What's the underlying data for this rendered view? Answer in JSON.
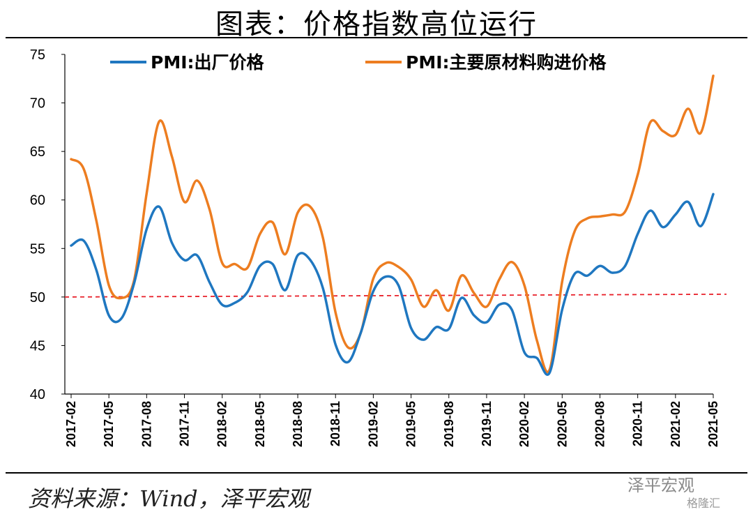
{
  "title": "图表：价格指数高位运行",
  "source": "资料来源：Wind，泽平宏观",
  "watermark": "泽平宏观",
  "watermark2": "格隆汇",
  "chart_data": {
    "type": "line",
    "ylim": [
      40,
      75
    ],
    "yticks": [
      40,
      45,
      50,
      55,
      60,
      65,
      70,
      75
    ],
    "xtick_labels": [
      "2017-02",
      "2017-05",
      "2017-08",
      "2017-11",
      "2018-02",
      "2018-05",
      "2018-08",
      "2018-11",
      "2019-02",
      "2019-05",
      "2019-08",
      "2019-11",
      "2020-02",
      "2020-05",
      "2020-08",
      "2020-11",
      "2021-02",
      "2021-05"
    ],
    "x": [
      "2017-02",
      "2017-03",
      "2017-04",
      "2017-05",
      "2017-06",
      "2017-07",
      "2017-08",
      "2017-09",
      "2017-10",
      "2017-11",
      "2017-12",
      "2018-01",
      "2018-02",
      "2018-03",
      "2018-04",
      "2018-05",
      "2018-06",
      "2018-07",
      "2018-08",
      "2018-09",
      "2018-10",
      "2018-11",
      "2018-12",
      "2019-01",
      "2019-02",
      "2019-03",
      "2019-04",
      "2019-05",
      "2019-06",
      "2019-07",
      "2019-08",
      "2019-09",
      "2019-10",
      "2019-11",
      "2019-12",
      "2020-01",
      "2020-02",
      "2020-03",
      "2020-04",
      "2020-05",
      "2020-06",
      "2020-07",
      "2020-08",
      "2020-09",
      "2020-10",
      "2020-11",
      "2020-12",
      "2021-01",
      "2021-02",
      "2021-03",
      "2021-04",
      "2021-05"
    ],
    "series": [
      {
        "name": "PMI:出厂价格",
        "color": "#1f77c0",
        "values": [
          55.3,
          55.8,
          52.8,
          48.1,
          47.8,
          51.4,
          57.0,
          59.3,
          55.6,
          53.8,
          54.3,
          51.5,
          49.2,
          49.4,
          50.5,
          53.2,
          53.4,
          50.7,
          54.3,
          53.8,
          50.9,
          45.1,
          43.3,
          46.3,
          50.6,
          52.1,
          51.2,
          46.8,
          45.6,
          46.9,
          46.7,
          49.9,
          48.1,
          47.4,
          49.2,
          48.7,
          44.3,
          43.7,
          42.2,
          48.7,
          52.4,
          52.2,
          53.2,
          52.5,
          53.2,
          56.5,
          58.9,
          57.2,
          58.5,
          59.8,
          57.3,
          60.6
        ]
      },
      {
        "name": "PMI:主要原材料购进价格",
        "color": "#ed7d20",
        "values": [
          64.2,
          63.2,
          57.9,
          51.2,
          49.9,
          51.7,
          60.7,
          68.1,
          64.5,
          59.8,
          62.0,
          59.0,
          53.5,
          53.4,
          53.0,
          56.5,
          57.7,
          54.4,
          58.7,
          59.3,
          56.1,
          48.4,
          44.8,
          46.3,
          51.9,
          53.5,
          53.1,
          51.8,
          49.0,
          50.7,
          48.6,
          52.2,
          50.4,
          49.0,
          51.8,
          53.6,
          51.2,
          45.5,
          42.5,
          51.6,
          56.8,
          58.1,
          58.3,
          58.5,
          58.8,
          62.6,
          68.0,
          67.1,
          66.7,
          69.4,
          66.9,
          72.8
        ]
      }
    ],
    "reference_line": {
      "value": 50,
      "color": "#e8202a",
      "style": "dashed"
    }
  }
}
